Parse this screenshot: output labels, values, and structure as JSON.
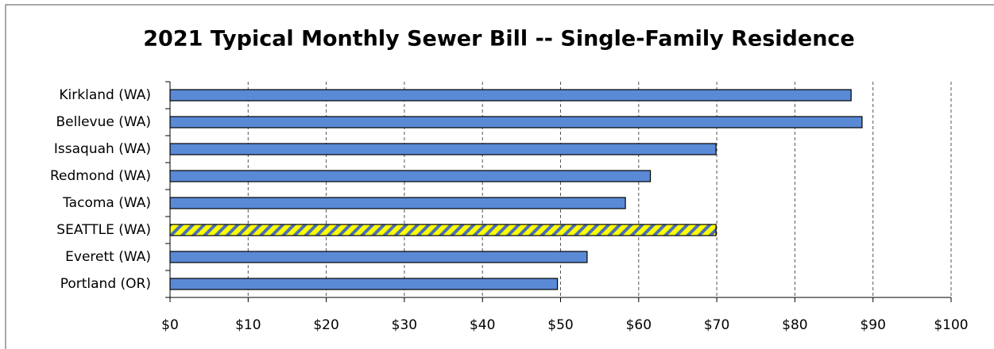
{
  "chart_data": {
    "type": "bar",
    "orientation": "horizontal",
    "title": "2021 Typical Monthly Sewer Bill -- Single-Family Residence",
    "categories": [
      "Kirkland (WA)",
      "Bellevue (WA)",
      "Issaquah (WA)",
      "Redmond (WA)",
      "Tacoma (WA)",
      "SEATTLE (WA)",
      "Everett (WA)",
      "Portland (OR)"
    ],
    "values": [
      87.2,
      88.6,
      69.9,
      61.5,
      58.3,
      69.9,
      53.4,
      49.6
    ],
    "colors": [
      "#5a8ad6",
      "#5a8ad6",
      "#5a8ad6",
      "#5a8ad6",
      "#5a8ad6",
      "#ffff00",
      "#5a8ad6",
      "#5a8ad6"
    ],
    "xlim": [
      0,
      100
    ],
    "xticks": [
      {
        "value": 0,
        "label": "$0"
      },
      {
        "value": 10,
        "label": "$10"
      },
      {
        "value": 20,
        "label": "$20"
      },
      {
        "value": 30,
        "label": "$30"
      },
      {
        "value": 40,
        "label": "$40"
      },
      {
        "value": 50,
        "label": "$50"
      },
      {
        "value": 60,
        "label": "$60"
      },
      {
        "value": 70,
        "label": "$70"
      },
      {
        "value": 80,
        "label": "$80"
      },
      {
        "value": 90,
        "label": "$90"
      },
      {
        "value": 100,
        "label": "$100"
      }
    ],
    "grid": true
  }
}
